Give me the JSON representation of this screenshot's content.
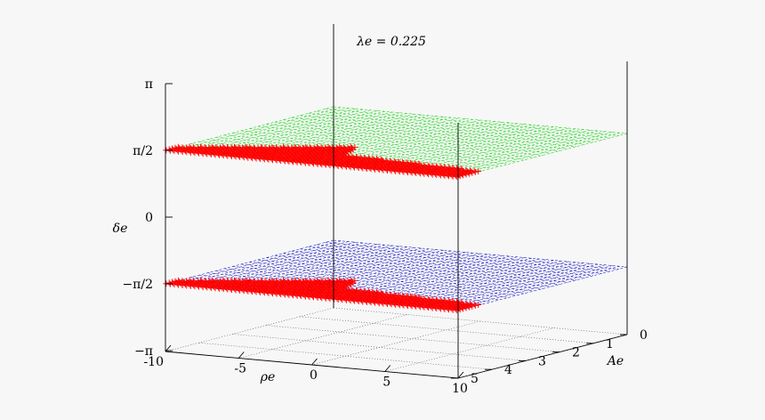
{
  "chart_data": {
    "type": "scatter",
    "title": "λe = 0.225",
    "xlabel": "ρe",
    "ylabel": "Ae",
    "zlabel": "δe",
    "x_ticks": [
      "-10",
      "-5",
      "0",
      "5",
      "10"
    ],
    "x_range": [
      -10,
      10
    ],
    "y_ticks": [
      "0",
      "1",
      "2",
      "3",
      "4",
      "5"
    ],
    "y_range": [
      0,
      5
    ],
    "z_ticks": [
      "π",
      "π/2",
      "0",
      "−π/2",
      "−π"
    ],
    "z_range": [
      -3.1416,
      3.1416
    ],
    "grid": true,
    "colors": {
      "upper_plane": "#00d000",
      "lower_plane": "#0000c0",
      "markers": "#ff0000",
      "axes": "#000000"
    },
    "series": [
      {
        "plane_z": 1.5708,
        "description": "upper plane δe = π/2 with red crosses along far edge",
        "region": [
          [
            -10,
            5
          ],
          [
            10,
            5
          ],
          [
            10,
            4.3
          ],
          [
            0,
            4.0
          ],
          [
            -1,
            3.2
          ],
          [
            -10,
            4.6
          ]
        ]
      },
      {
        "plane_z": -1.5708,
        "description": "lower plane δe = −π/2 with red crosses along far edge",
        "region": [
          [
            -10,
            5
          ],
          [
            10,
            5
          ],
          [
            10,
            4.3
          ],
          [
            0,
            4.0
          ],
          [
            -1,
            3.2
          ],
          [
            -10,
            4.6
          ]
        ]
      }
    ]
  }
}
